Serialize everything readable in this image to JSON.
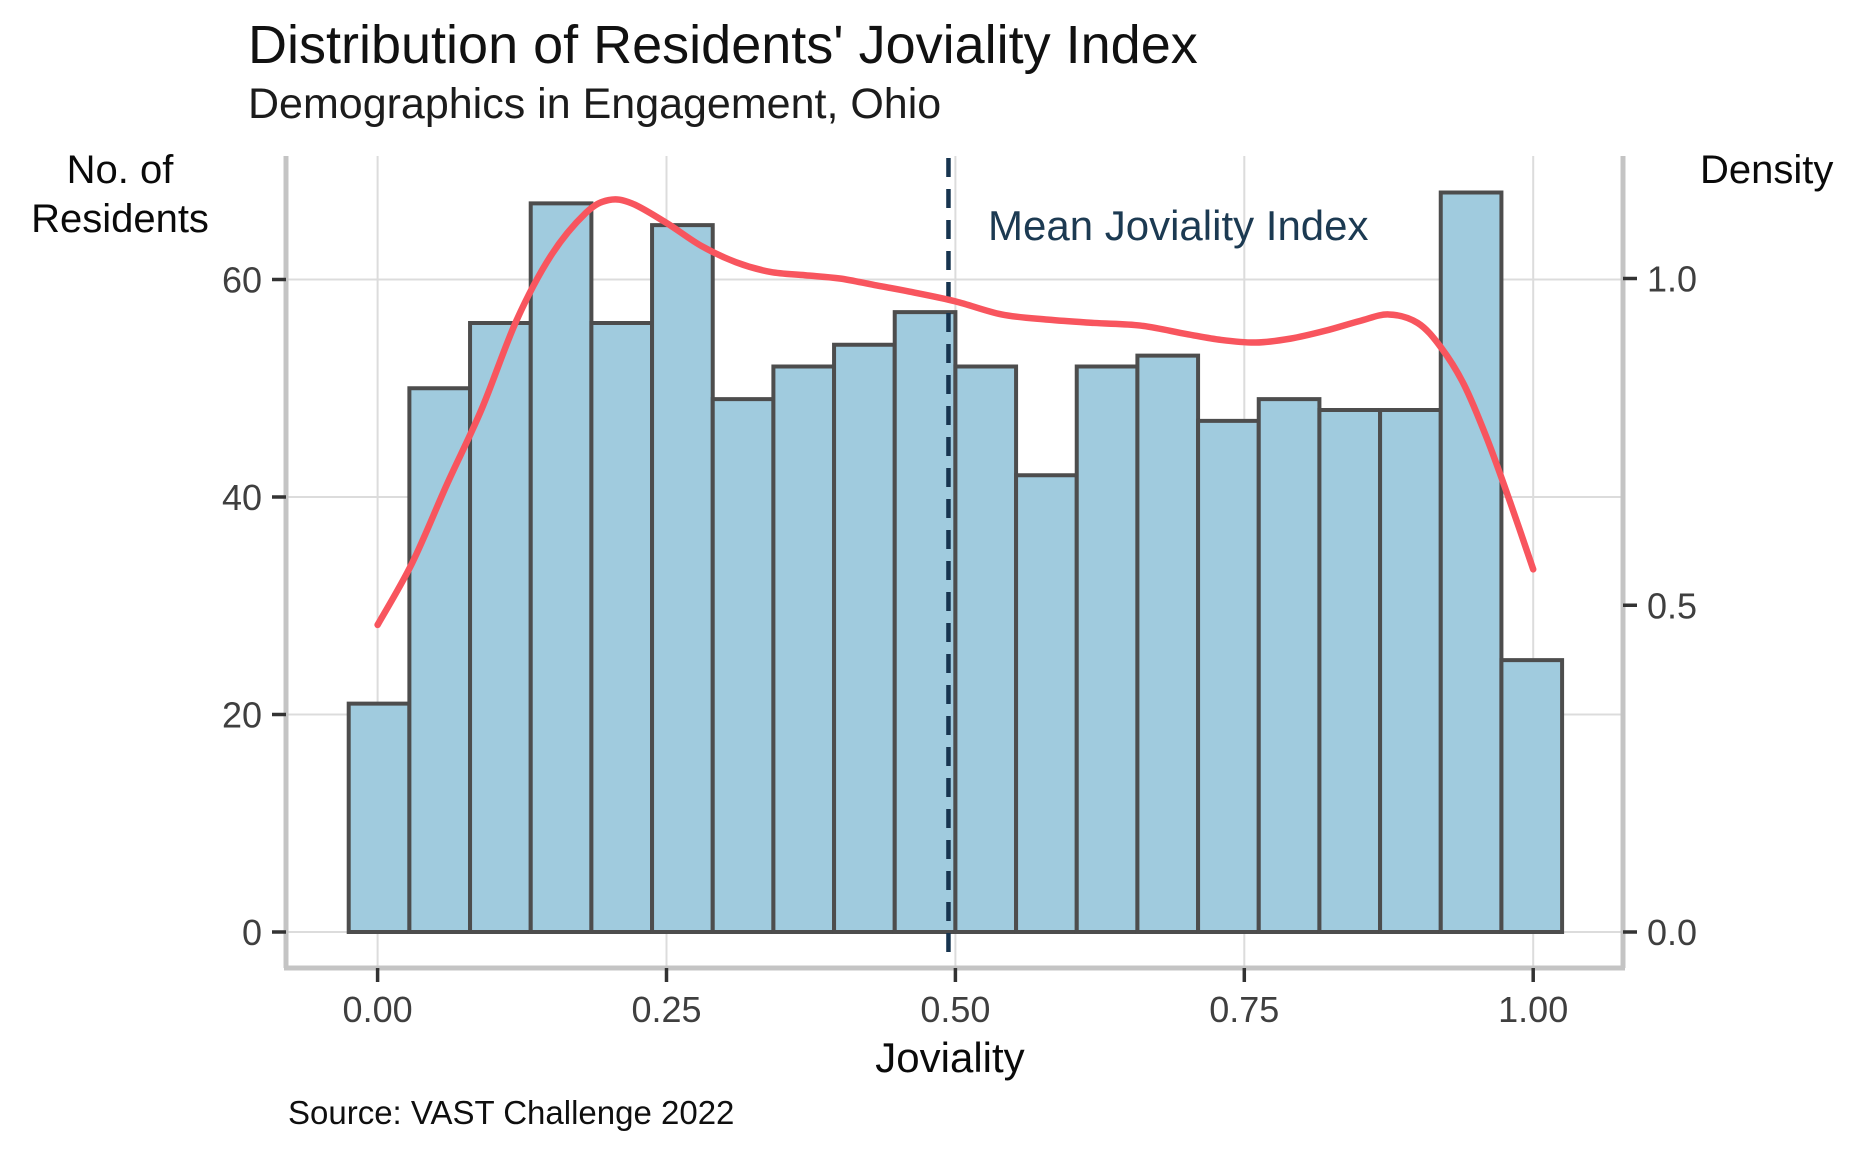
{
  "header": {
    "title": "Distribution of Residents' Joviality Index",
    "subtitle": "Demographics in Engagement, Ohio"
  },
  "axes": {
    "left": {
      "label_line1": "No. of",
      "label_line2": "Residents",
      "tick_labels": [
        "0",
        "20",
        "40",
        "60"
      ],
      "ticks": [
        0,
        20,
        40,
        60
      ]
    },
    "right": {
      "label": "Density",
      "tick_labels": [
        "0.0",
        "0.5",
        "1.0"
      ],
      "ticks": [
        0,
        0.5,
        1.0
      ]
    },
    "x": {
      "label": "Joviality",
      "tick_labels": [
        "0.00",
        "0.25",
        "0.50",
        "0.75",
        "1.00"
      ],
      "ticks": [
        0,
        0.25,
        0.5,
        0.75,
        1.0
      ]
    }
  },
  "annotation": {
    "mean_label": "Mean Joviality Index"
  },
  "caption": "Source: VAST Challenge 2022",
  "colors": {
    "bar_fill": "#a0cbde",
    "bar_stroke": "#4d4d4d",
    "density_curve": "#f8555e",
    "mean_line": "#17344f",
    "mean_label_text": "#1c3a52",
    "grid": "#dcdcdc",
    "axis_line": "#c4c4c4",
    "tick_mark": "#333333"
  },
  "chart_data": {
    "type": "bar",
    "subtype": "histogram_with_density",
    "title": "Distribution of Residents' Joviality Index",
    "subtitle": "Demographics in Engagement, Ohio",
    "xlabel": "Joviality",
    "ylabel": "No. of Residents",
    "ylabel_secondary": "Density",
    "caption": "Source: VAST Challenge 2022",
    "grid": true,
    "legend_position": "none",
    "xlim": [
      -0.08,
      1.078
    ],
    "ylim": [
      0,
      71.4
    ],
    "x_ticks": [
      0,
      0.25,
      0.5,
      0.75,
      1.0
    ],
    "count_ticks": [
      0,
      20,
      40,
      60
    ],
    "density_ticks": [
      0,
      0.5,
      1.0
    ],
    "bin_width": 0.0525,
    "bin_edges": [
      -0.025,
      0.0275,
      0.08,
      0.1325,
      0.185,
      0.2375,
      0.29,
      0.3425,
      0.395,
      0.4475,
      0.5,
      0.5525,
      0.605,
      0.6575,
      0.71,
      0.7625,
      0.815,
      0.8675,
      0.92,
      0.9725,
      1.025
    ],
    "counts": [
      21,
      50,
      56,
      67,
      56,
      65,
      49,
      52,
      54,
      57,
      52,
      42,
      52,
      53,
      47,
      49,
      48,
      48,
      68,
      25
    ],
    "mean_line_x": 0.494,
    "density_curve": {
      "x": [
        0.0,
        0.03,
        0.06,
        0.09,
        0.12,
        0.15,
        0.18,
        0.2,
        0.22,
        0.25,
        0.28,
        0.31,
        0.34,
        0.37,
        0.4,
        0.43,
        0.46,
        0.5,
        0.54,
        0.58,
        0.62,
        0.66,
        0.7,
        0.73,
        0.76,
        0.79,
        0.82,
        0.85,
        0.875,
        0.9,
        0.92,
        0.94,
        0.96,
        0.98,
        1.0
      ],
      "density": [
        0.47,
        0.565,
        0.685,
        0.8,
        0.935,
        1.035,
        1.1,
        1.12,
        1.115,
        1.085,
        1.05,
        1.025,
        1.01,
        1.005,
        1.0,
        0.99,
        0.98,
        0.965,
        0.945,
        0.937,
        0.932,
        0.928,
        0.915,
        0.906,
        0.902,
        0.908,
        0.92,
        0.935,
        0.945,
        0.932,
        0.895,
        0.838,
        0.755,
        0.658,
        0.555
      ]
    }
  }
}
